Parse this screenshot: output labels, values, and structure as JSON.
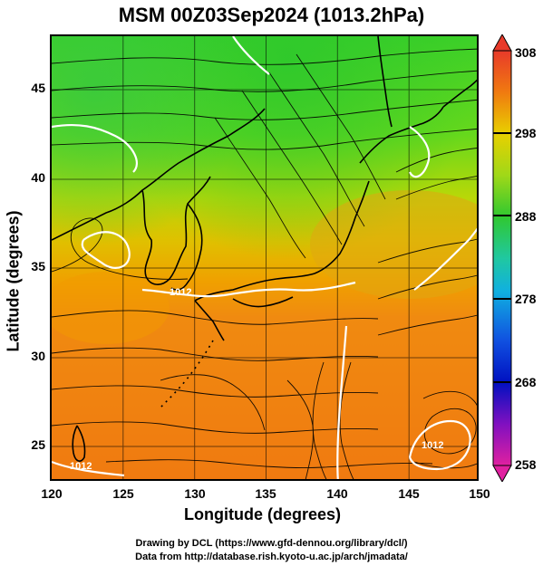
{
  "title": "MSM 00Z03Sep2024 (1013.2hPa)",
  "xlabel": "Longitude (degrees)",
  "ylabel": "Latitude  (degrees)",
  "x_ticks": [
    "120",
    "125",
    "130",
    "135",
    "140",
    "145",
    "150"
  ],
  "y_ticks": [
    "25",
    "30",
    "35",
    "40",
    "45"
  ],
  "colorbar_ticks": [
    "308",
    "298",
    "288",
    "278",
    "268",
    "258"
  ],
  "isobar_labels": [
    "1012",
    "1012",
    "1012"
  ],
  "credit_line1": "Drawing by DCL (https://www.gfd-dennou.org/library/dcl/)",
  "credit_line2": "Data from http://database.rish.kyoto-u.ac.jp/arch/jmadata/",
  "colors": {
    "warm": "#f07a10",
    "mid": "#c8d400",
    "cool": "#40d020",
    "land": "#000000",
    "isobar": "#ffffff"
  },
  "chart_data": {
    "type": "map",
    "region": "East Asia / Japan",
    "xlim": [
      120,
      150
    ],
    "ylim": [
      23,
      48
    ],
    "field": "surface temperature (K) with wind streamlines and isobars",
    "colorbar_range": [
      258,
      308
    ]
  }
}
